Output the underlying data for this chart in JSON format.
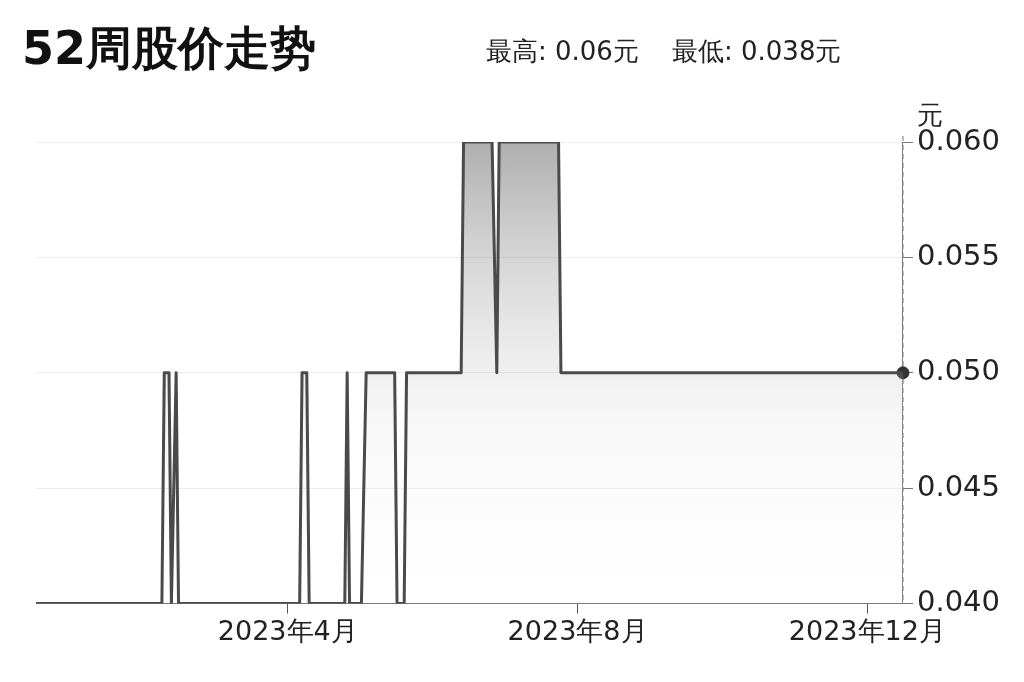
{
  "chart_data": {
    "type": "area",
    "title": "52周股价走势",
    "subtitle": "最高: 0.06元    最低: 0.038元",
    "ylabel": "元",
    "xlim": [
      "2022-12-16",
      "2023-12-16"
    ],
    "xticks": [
      {
        "value": "2023-04-01",
        "label": "2023年4月"
      },
      {
        "value": "2023-08-01",
        "label": "2023年8月"
      },
      {
        "value": "2023-12-01",
        "label": "2023年12月"
      }
    ],
    "ylim": [
      0.04,
      0.06
    ],
    "yticks": [
      {
        "value": 0.04,
        "label": "0.040"
      },
      {
        "value": 0.045,
        "label": "0.045"
      },
      {
        "value": 0.05,
        "label": "0.050"
      },
      {
        "value": 0.055,
        "label": "0.055"
      },
      {
        "value": 0.06,
        "label": "0.060"
      }
    ],
    "grid": "y",
    "legend": false,
    "series": [
      {
        "color": "#4a4a4a",
        "x": [
          "2022-12-16",
          "2023-02-07",
          "2023-02-08",
          "2023-02-10",
          "2023-02-11",
          "2023-02-13",
          "2023-02-14",
          "2023-04-06",
          "2023-04-07",
          "2023-04-09",
          "2023-04-10",
          "2023-04-25",
          "2023-04-26",
          "2023-04-27",
          "2023-05-02",
          "2023-05-04",
          "2023-05-16",
          "2023-05-17",
          "2023-05-20",
          "2023-05-21",
          "2023-06-13",
          "2023-06-14",
          "2023-06-26",
          "2023-06-28",
          "2023-06-29",
          "2023-07-24",
          "2023-07-25",
          "2023-12-16"
        ],
        "values": [
          0.04,
          0.04,
          0.05,
          0.05,
          0.04,
          0.05,
          0.04,
          0.04,
          0.05,
          0.05,
          0.04,
          0.04,
          0.05,
          0.04,
          0.04,
          0.05,
          0.05,
          0.04,
          0.04,
          0.05,
          0.05,
          0.06,
          0.06,
          0.05,
          0.06,
          0.06,
          0.05,
          0.05
        ]
      },
      {
        "type": "scatter",
        "color": "#333333",
        "marker": "circle",
        "x": [
          "2023-12-16"
        ],
        "values": [
          0.05
        ]
      }
    ],
    "ref_lines": [
      {
        "axis": "x",
        "value": "2023-12-16",
        "color": "#888888",
        "line_style": "dashed"
      }
    ]
  }
}
